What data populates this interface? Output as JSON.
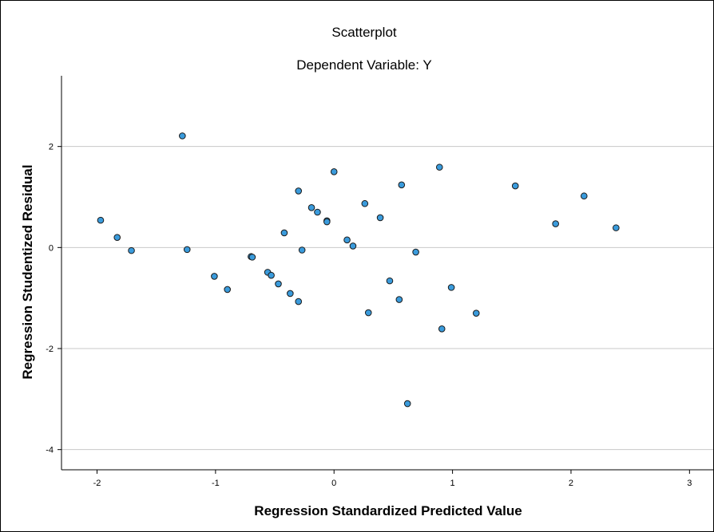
{
  "chart_data": {
    "type": "scatter",
    "title": "Scatterplot",
    "subtitle": "Dependent Variable: Y",
    "xlabel": "Regression Standardized Predicted Value",
    "ylabel": "Regression Studentized Residual",
    "xlim": [
      -2.3,
      3.2
    ],
    "ylim": [
      -4.4,
      3.4
    ],
    "xticks": [
      -2,
      -1,
      0,
      1,
      2,
      3
    ],
    "yticks": [
      -4,
      -2,
      0,
      2
    ],
    "grid": "horizontal",
    "colors": {
      "marker_fill": "#3a9bdc",
      "marker_stroke": "#1a1a1a",
      "grid": "#c8c8c8",
      "axis": "#000000"
    },
    "points": [
      {
        "x": -1.97,
        "y": 0.54
      },
      {
        "x": -1.83,
        "y": 0.2
      },
      {
        "x": -1.71,
        "y": -0.06
      },
      {
        "x": -1.28,
        "y": 2.21
      },
      {
        "x": -1.24,
        "y": -0.04
      },
      {
        "x": -1.01,
        "y": -0.57
      },
      {
        "x": -0.9,
        "y": -0.83
      },
      {
        "x": -0.7,
        "y": -0.18
      },
      {
        "x": -0.69,
        "y": -0.19
      },
      {
        "x": -0.56,
        "y": -0.49
      },
      {
        "x": -0.53,
        "y": -0.55
      },
      {
        "x": -0.47,
        "y": -0.72
      },
      {
        "x": -0.42,
        "y": 0.29
      },
      {
        "x": -0.37,
        "y": -0.91
      },
      {
        "x": -0.3,
        "y": 1.12
      },
      {
        "x": -0.3,
        "y": -1.07
      },
      {
        "x": -0.27,
        "y": -0.05
      },
      {
        "x": -0.19,
        "y": 0.79
      },
      {
        "x": -0.14,
        "y": 0.7
      },
      {
        "x": -0.06,
        "y": 0.53
      },
      {
        "x": -0.06,
        "y": 0.51
      },
      {
        "x": 0.0,
        "y": 1.5
      },
      {
        "x": 0.11,
        "y": 0.15
      },
      {
        "x": 0.16,
        "y": 0.03
      },
      {
        "x": 0.26,
        "y": 0.87
      },
      {
        "x": 0.29,
        "y": -1.29
      },
      {
        "x": 0.39,
        "y": 0.59
      },
      {
        "x": 0.47,
        "y": -0.66
      },
      {
        "x": 0.55,
        "y": -1.03
      },
      {
        "x": 0.57,
        "y": 1.24
      },
      {
        "x": 0.62,
        "y": -3.09
      },
      {
        "x": 0.69,
        "y": -0.09
      },
      {
        "x": 0.89,
        "y": 1.59
      },
      {
        "x": 0.91,
        "y": -1.61
      },
      {
        "x": 0.99,
        "y": -0.79
      },
      {
        "x": 1.2,
        "y": -1.3
      },
      {
        "x": 1.53,
        "y": 1.22
      },
      {
        "x": 1.87,
        "y": 0.47
      },
      {
        "x": 2.11,
        "y": 1.02
      },
      {
        "x": 2.38,
        "y": 0.39
      }
    ]
  }
}
